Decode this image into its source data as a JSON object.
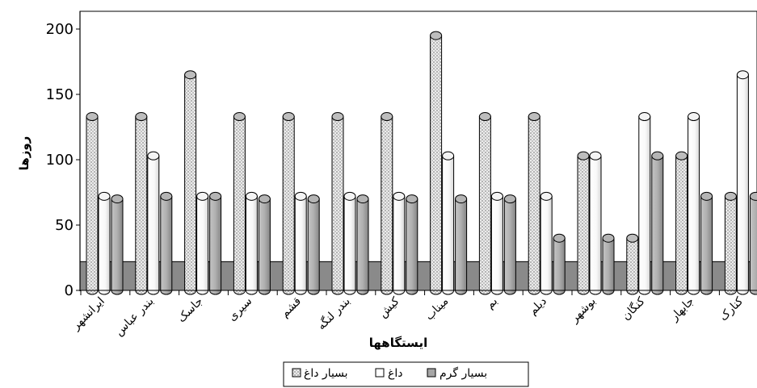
{
  "chart_data": {
    "type": "bar",
    "xlabel": "ایستگاهها",
    "ylabel": "روزها",
    "ylim": [
      0,
      215
    ],
    "yticks": [
      0,
      50,
      100,
      150,
      200
    ],
    "grid": false,
    "legend_position": "bottom",
    "categories": [
      "ایرانشهر",
      "بندر عباس",
      "جاسک",
      "سیری",
      "قشم",
      "بندر لنگه",
      "کیش",
      "میناب",
      "بم",
      "دیلم",
      "بوشهر",
      "کنگان",
      "جابهار",
      "کنارک"
    ],
    "series": [
      {
        "name": "بسیار داغ",
        "values": [
          133,
          133,
          165,
          133,
          133,
          133,
          133,
          195,
          133,
          133,
          103,
          40,
          103,
          72
        ]
      },
      {
        "name": "داغ",
        "values": [
          72,
          103,
          72,
          72,
          72,
          72,
          72,
          103,
          72,
          72,
          103,
          133,
          133,
          165
        ]
      },
      {
        "name": "بسیار گرم",
        "values": [
          70,
          72,
          72,
          70,
          70,
          70,
          70,
          70,
          70,
          40,
          40,
          103,
          72,
          72
        ]
      }
    ],
    "floor_level": 22,
    "colors": {
      "series1": "#d4d4d4",
      "series2": "#fbfbfb",
      "series3": "#a6a6a6",
      "floor": "#8a8a8a"
    }
  }
}
